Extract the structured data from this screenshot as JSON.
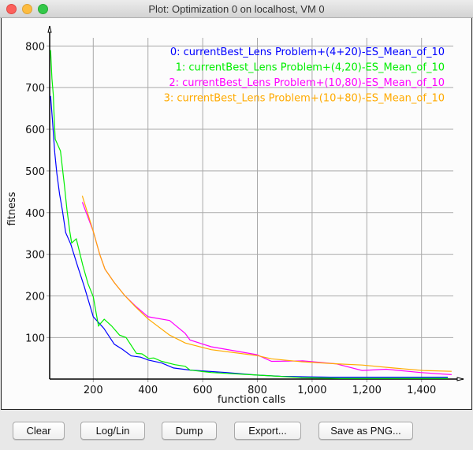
{
  "window": {
    "title": "Plot: Optimization 0  on localhost, VM 0",
    "controls": {
      "close_color": "#fc605c",
      "minimize_color": "#fdbc40",
      "maximize_color": "#34c84a"
    }
  },
  "buttons": {
    "clear": "Clear",
    "loglin": "Log/Lin",
    "dump": "Dump",
    "export": "Export...",
    "save_png": "Save as PNG..."
  },
  "chart_data": {
    "type": "line",
    "xlabel": "function calls",
    "ylabel": "fitness",
    "xlim": [
      40,
      1520
    ],
    "ylim": [
      0,
      850
    ],
    "grid": true,
    "legend_position": "top-right",
    "x_ticks": [
      200,
      400,
      600,
      800,
      1000,
      1200,
      1400
    ],
    "x_tick_labels": [
      "200",
      "400",
      "600",
      "800",
      "1,000",
      "1,200",
      "1,400"
    ],
    "y_ticks": [
      100,
      200,
      300,
      400,
      500,
      600,
      700,
      800
    ],
    "y_tick_labels": [
      "100",
      "200",
      "300",
      "400",
      "500",
      "600",
      "700",
      "800"
    ],
    "series": [
      {
        "name": "0: currentBest_Lens Problem+(4+20)-ES_Mean_of_10",
        "color": "#0000ff",
        "points": [
          [
            44,
            680
          ],
          [
            51,
            620
          ],
          [
            59,
            545
          ],
          [
            67,
            494
          ],
          [
            77,
            444
          ],
          [
            87,
            406
          ],
          [
            99,
            352
          ],
          [
            118,
            324
          ],
          [
            142,
            273
          ],
          [
            167,
            223
          ],
          [
            200,
            150
          ],
          [
            239,
            122
          ],
          [
            277,
            84
          ],
          [
            306,
            72
          ],
          [
            339,
            56
          ],
          [
            373,
            53
          ],
          [
            402,
            46
          ],
          [
            450,
            39
          ],
          [
            493,
            27
          ],
          [
            554,
            22
          ],
          [
            687,
            16
          ],
          [
            797,
            10
          ],
          [
            886,
            7
          ],
          [
            1067,
            5
          ],
          [
            1496,
            5
          ]
        ]
      },
      {
        "name": "1: currentBest_Lens Problem+(4,20)-ES_Mean_of_10",
        "color": "#00ee00",
        "points": [
          [
            44,
            790
          ],
          [
            49,
            721
          ],
          [
            54,
            683
          ],
          [
            58,
            614
          ],
          [
            61,
            576
          ],
          [
            80,
            548
          ],
          [
            94,
            469
          ],
          [
            104,
            406
          ],
          [
            114,
            355
          ],
          [
            121,
            327
          ],
          [
            138,
            337
          ],
          [
            162,
            273
          ],
          [
            181,
            229
          ],
          [
            200,
            198
          ],
          [
            219,
            128
          ],
          [
            240,
            144
          ],
          [
            267,
            128
          ],
          [
            296,
            106
          ],
          [
            320,
            100
          ],
          [
            358,
            62
          ],
          [
            378,
            61
          ],
          [
            402,
            50
          ],
          [
            421,
            51
          ],
          [
            450,
            43
          ],
          [
            498,
            35
          ],
          [
            536,
            31
          ],
          [
            554,
            22
          ],
          [
            631,
            16
          ],
          [
            797,
            10
          ],
          [
            962,
            4
          ],
          [
            1105,
            2
          ],
          [
            1497,
            2
          ]
        ]
      },
      {
        "name": "2: currentBest_Lens Problem+(10,80)-ES_Mean_of_10",
        "color": "#ff00ff",
        "points": [
          [
            160,
            425
          ],
          [
            200,
            355
          ],
          [
            224,
            299
          ],
          [
            243,
            264
          ],
          [
            277,
            232
          ],
          [
            315,
            201
          ],
          [
            354,
            176
          ],
          [
            400,
            150
          ],
          [
            479,
            141
          ],
          [
            536,
            110
          ],
          [
            554,
            94
          ],
          [
            631,
            78
          ],
          [
            797,
            59
          ],
          [
            852,
            43
          ],
          [
            965,
            44
          ],
          [
            1087,
            37
          ],
          [
            1183,
            21
          ],
          [
            1271,
            24
          ],
          [
            1396,
            16
          ],
          [
            1510,
            11
          ]
        ]
      },
      {
        "name": "3: currentBest_Lens Problem+(10+80)-ES_Mean_of_10",
        "color": "#ffaa00",
        "points": [
          [
            160,
            440
          ],
          [
            200,
            355
          ],
          [
            224,
            299
          ],
          [
            243,
            264
          ],
          [
            277,
            232
          ],
          [
            315,
            201
          ],
          [
            354,
            174
          ],
          [
            400,
            145
          ],
          [
            479,
            106
          ],
          [
            536,
            87
          ],
          [
            631,
            71
          ],
          [
            797,
            57
          ],
          [
            852,
            49
          ],
          [
            962,
            42
          ],
          [
            1087,
            37
          ],
          [
            1183,
            34
          ],
          [
            1296,
            27
          ],
          [
            1406,
            21
          ],
          [
            1510,
            19
          ]
        ]
      }
    ]
  }
}
